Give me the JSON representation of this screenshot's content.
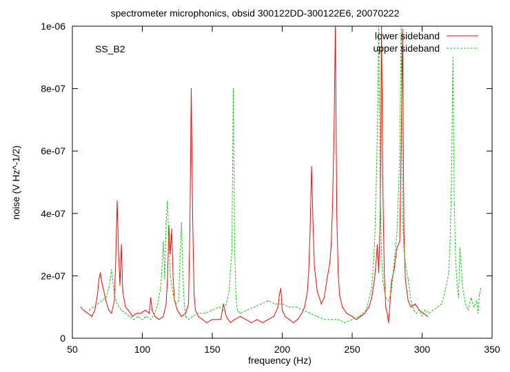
{
  "chart_data": {
    "type": "line",
    "title": "spectrometer microphonics, obsid 300122DD-300122E6, 20070222",
    "xlabel": "frequency (Hz)",
    "ylabel": "noise (V Hz^-1/2)",
    "xlim": [
      50,
      350
    ],
    "ylim": [
      0,
      1e-06
    ],
    "xticks": [
      50,
      100,
      150,
      200,
      250,
      300,
      350
    ],
    "xtick_labels": [
      "50",
      "100",
      "150",
      "200",
      "250",
      "300",
      "350"
    ],
    "yticks": [
      0,
      2e-07,
      4e-07,
      6e-07,
      8e-07,
      1e-06
    ],
    "ytick_labels": [
      "0",
      "2e-07",
      "4e-07",
      "6e-07",
      "8e-07",
      "1e-06"
    ],
    "grid": false,
    "legend_position": "top-right",
    "annotation": "SS_B2",
    "series": [
      {
        "name": "lower sideband",
        "color": "#ff0000",
        "dash": "solid",
        "x": [
          56,
          58,
          61,
          64,
          66,
          68,
          69,
          70,
          71,
          72,
          74,
          76,
          78,
          80,
          81,
          82,
          83,
          84,
          85,
          86,
          88,
          90,
          93,
          96,
          99,
          102,
          105,
          106,
          107,
          109,
          112,
          115,
          117,
          118,
          119,
          120,
          121,
          122,
          123,
          125,
          128,
          131,
          133,
          134,
          135,
          136,
          137,
          138,
          140,
          143,
          146,
          150,
          153,
          156,
          158,
          160,
          163,
          166,
          170,
          174,
          178,
          182,
          186,
          190,
          194,
          197,
          198,
          199,
          200,
          202,
          205,
          208,
          211,
          214,
          216,
          218,
          219,
          220,
          221,
          222,
          223,
          225,
          228,
          230,
          232,
          234,
          235,
          236,
          237,
          238,
          239,
          240,
          241,
          243,
          246,
          250,
          253,
          256,
          259,
          262,
          264,
          266,
          267,
          268,
          269,
          270,
          271,
          272,
          273,
          274,
          275,
          276,
          277,
          278,
          280,
          282,
          284,
          285,
          286,
          287,
          288,
          290,
          292,
          295,
          298,
          301,
          304
        ],
        "y": [
          1e-07,
          9e-08,
          8e-08,
          7e-08,
          9e-08,
          1.4e-07,
          1.9e-07,
          2.1e-07,
          1.8e-07,
          1.6e-07,
          1.2e-07,
          9e-08,
          8e-08,
          1.2e-07,
          2.5e-07,
          4.4e-07,
          2.8e-07,
          1.7e-07,
          3e-07,
          1.5e-07,
          1e-07,
          9e-08,
          7e-08,
          8e-08,
          8e-08,
          9e-08,
          8e-08,
          1.3e-07,
          9e-08,
          7e-08,
          6e-08,
          7e-08,
          1.1e-07,
          1.9e-07,
          3.6e-07,
          2.7e-07,
          3.5e-07,
          1.9e-07,
          1.2e-07,
          9e-08,
          7e-08,
          8e-08,
          1.1e-07,
          3.5e-07,
          8e-07,
          3.8e-07,
          1.4e-07,
          9e-08,
          7e-08,
          6e-08,
          5e-08,
          6e-08,
          6e-08,
          6e-08,
          1.1e-07,
          7e-08,
          5e-08,
          6e-08,
          7e-08,
          6e-08,
          5e-08,
          6e-08,
          5e-08,
          6e-08,
          7e-08,
          1e-07,
          1.4e-07,
          1.6e-07,
          9e-08,
          7e-08,
          6e-08,
          5e-08,
          6e-08,
          8e-08,
          1e-07,
          1.5e-07,
          2.2e-07,
          3.6e-07,
          5.5e-07,
          3.7e-07,
          2.3e-07,
          1.5e-07,
          1.1e-07,
          1.3e-07,
          1.9e-07,
          2.4e-07,
          3e-07,
          4.3e-07,
          6.5e-07,
          1e-06,
          3.9e-07,
          2.1e-07,
          1.4e-07,
          1e-07,
          8e-08,
          7e-08,
          6e-08,
          7e-08,
          8e-08,
          1e-07,
          1.3e-07,
          1.9e-07,
          2.4e-07,
          3e-07,
          2.1e-07,
          3.8e-07,
          1e-06,
          4.6e-07,
          2e-07,
          1e-07,
          8e-08,
          5e-08,
          1.1e-07,
          1.8e-07,
          2.2e-07,
          2.9e-07,
          3.1e-07,
          6e-07,
          9.9e-07,
          3.4e-07,
          1.9e-07,
          1.2e-07,
          1e-07,
          1.1e-07,
          9e-08,
          8e-08,
          7e-08
        ]
      },
      {
        "name": "upper sideband",
        "color": "#00cc00",
        "dash": "dashed",
        "x": [
          131,
          133,
          136,
          140,
          145,
          150,
          155,
          158,
          160,
          162,
          164,
          165,
          166,
          167,
          168,
          170,
          175,
          180,
          185,
          190,
          195,
          200,
          205,
          210,
          215,
          220,
          225,
          230,
          235,
          240,
          245,
          250,
          255,
          260,
          264,
          266,
          267,
          268,
          269,
          270,
          271,
          272,
          274,
          276,
          278,
          280,
          282,
          283,
          284,
          285,
          286,
          287,
          288,
          290,
          292,
          294,
          296,
          298,
          300,
          302,
          305,
          308,
          311,
          314,
          317,
          319,
          320,
          321,
          322,
          323,
          324,
          325,
          326,
          327,
          329,
          331,
          333,
          335,
          337,
          339,
          340,
          341,
          342
        ],
        "y": [
          7e-08,
          6e-08,
          7e-08,
          8e-08,
          8e-08,
          9e-08,
          1e-07,
          9e-08,
          1.1e-07,
          1.5e-07,
          2.8e-07,
          8e-07,
          2.8e-07,
          1.3e-07,
          9e-08,
          8e-08,
          9e-08,
          1e-07,
          1.1e-07,
          1.2e-07,
          1.1e-07,
          1.1e-07,
          1e-07,
          1e-07,
          9e-08,
          8e-08,
          7e-08,
          6e-08,
          6e-08,
          6e-08,
          5e-08,
          6e-08,
          7e-08,
          9e-08,
          1.6e-07,
          3e-07,
          4.6e-07,
          6.5e-07,
          1e-06,
          4.8e-07,
          2.7e-07,
          1.8e-07,
          1.3e-07,
          1.2e-07,
          1.5e-07,
          2.4e-07,
          3.4e-07,
          4.6e-07,
          5.8e-07,
          1e-06,
          3.9e-07,
          2.9e-07,
          2.4e-07,
          1.9e-07,
          1.2e-07,
          9e-08,
          8e-08,
          9e-08,
          7e-08,
          9e-08,
          8e-08,
          9e-08,
          1e-07,
          1.1e-07,
          1.6e-07,
          2.1e-07,
          3.1e-07,
          5e-07,
          9e-07,
          4.3e-07,
          2.5e-07,
          1.7e-07,
          1.3e-07,
          2.9e-07,
          1.6e-07,
          1.1e-07,
          9e-08,
          1.3e-07,
          1e-07,
          1.2e-07,
          8e-08,
          1.4e-07,
          1.6e-07
        ]
      },
      {
        "name": "upper sideband",
        "color": "#00cc00",
        "dash": "dashed",
        "x": [
          62,
          65,
          68,
          71,
          74,
          76,
          77,
          78,
          79,
          80,
          82,
          85,
          88,
          91,
          94,
          97,
          100,
          103,
          106,
          109,
          111,
          113,
          114,
          115,
          116,
          117,
          118,
          119,
          120,
          122,
          124,
          126,
          127,
          128,
          129,
          130,
          131
        ],
        "y": [
          9e-08,
          1e-07,
          1.1e-07,
          1.2e-07,
          1.3e-07,
          1.6e-07,
          1.9e-07,
          2.2e-07,
          1.8e-07,
          1.4e-07,
          1.1e-07,
          9e-08,
          8e-08,
          7e-08,
          6e-08,
          7e-08,
          6e-08,
          7e-08,
          6e-08,
          8e-08,
          1.1e-07,
          1.6e-07,
          2.2e-07,
          3.1e-07,
          1.9e-07,
          3.7e-07,
          4.4e-07,
          3e-07,
          2e-07,
          1.4e-07,
          1.1e-07,
          1.2e-07,
          2.6e-07,
          3.7e-07,
          2e-07,
          1.1e-07,
          7e-08
        ]
      }
    ]
  }
}
